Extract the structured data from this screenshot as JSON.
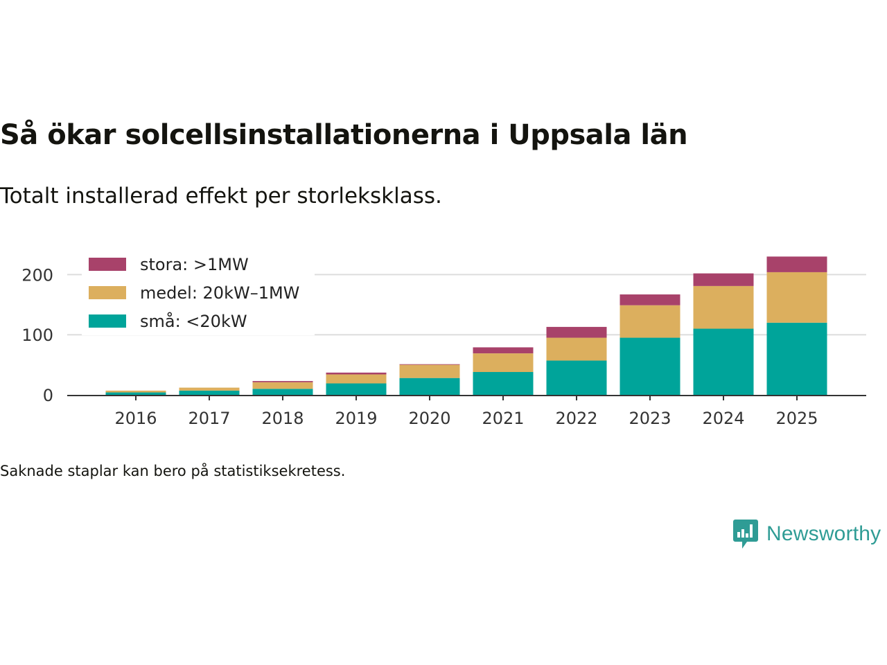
{
  "title": "Så ökar solcellsinstallationerna i Uppsala län",
  "subtitle": "Totalt installerad effekt per storleksklass.",
  "note": "Saknade staplar kan bero på statistiksekretess.",
  "brand": {
    "name": "Newsworthy",
    "icon": "newsworthy-logo-icon",
    "color": "#2f9c95"
  },
  "chart_data": {
    "type": "bar",
    "stacked": true,
    "title": "Så ökar solcellsinstallationerna i Uppsala län",
    "subtitle": "Totalt installerad effekt per storleksklass.",
    "xlabel": "",
    "ylabel": "",
    "ylim": [
      0,
      232
    ],
    "yticks": [
      0,
      100,
      200
    ],
    "grid": true,
    "legend_position": "top-left",
    "categories": [
      "2016",
      "2017",
      "2018",
      "2019",
      "2020",
      "2021",
      "2022",
      "2023",
      "2024",
      "2025"
    ],
    "series": [
      {
        "name": "små: <20kW",
        "color": "#00a49a",
        "values": [
          4,
          7,
          10,
          19,
          28,
          38,
          57,
          95,
          110,
          120
        ]
      },
      {
        "name": "medel: 20kW–1MW",
        "color": "#dcaf5e",
        "values": [
          3,
          5,
          11,
          15,
          22,
          31,
          38,
          54,
          71,
          84
        ]
      },
      {
        "name": "stora: >1MW",
        "color": "#a8426a",
        "values": [
          0,
          0,
          2,
          3,
          1,
          10,
          18,
          18,
          21,
          26
        ]
      }
    ],
    "legend_order": [
      "stora: >1MW",
      "medel: 20kW–1MW",
      "små: <20kW"
    ]
  }
}
